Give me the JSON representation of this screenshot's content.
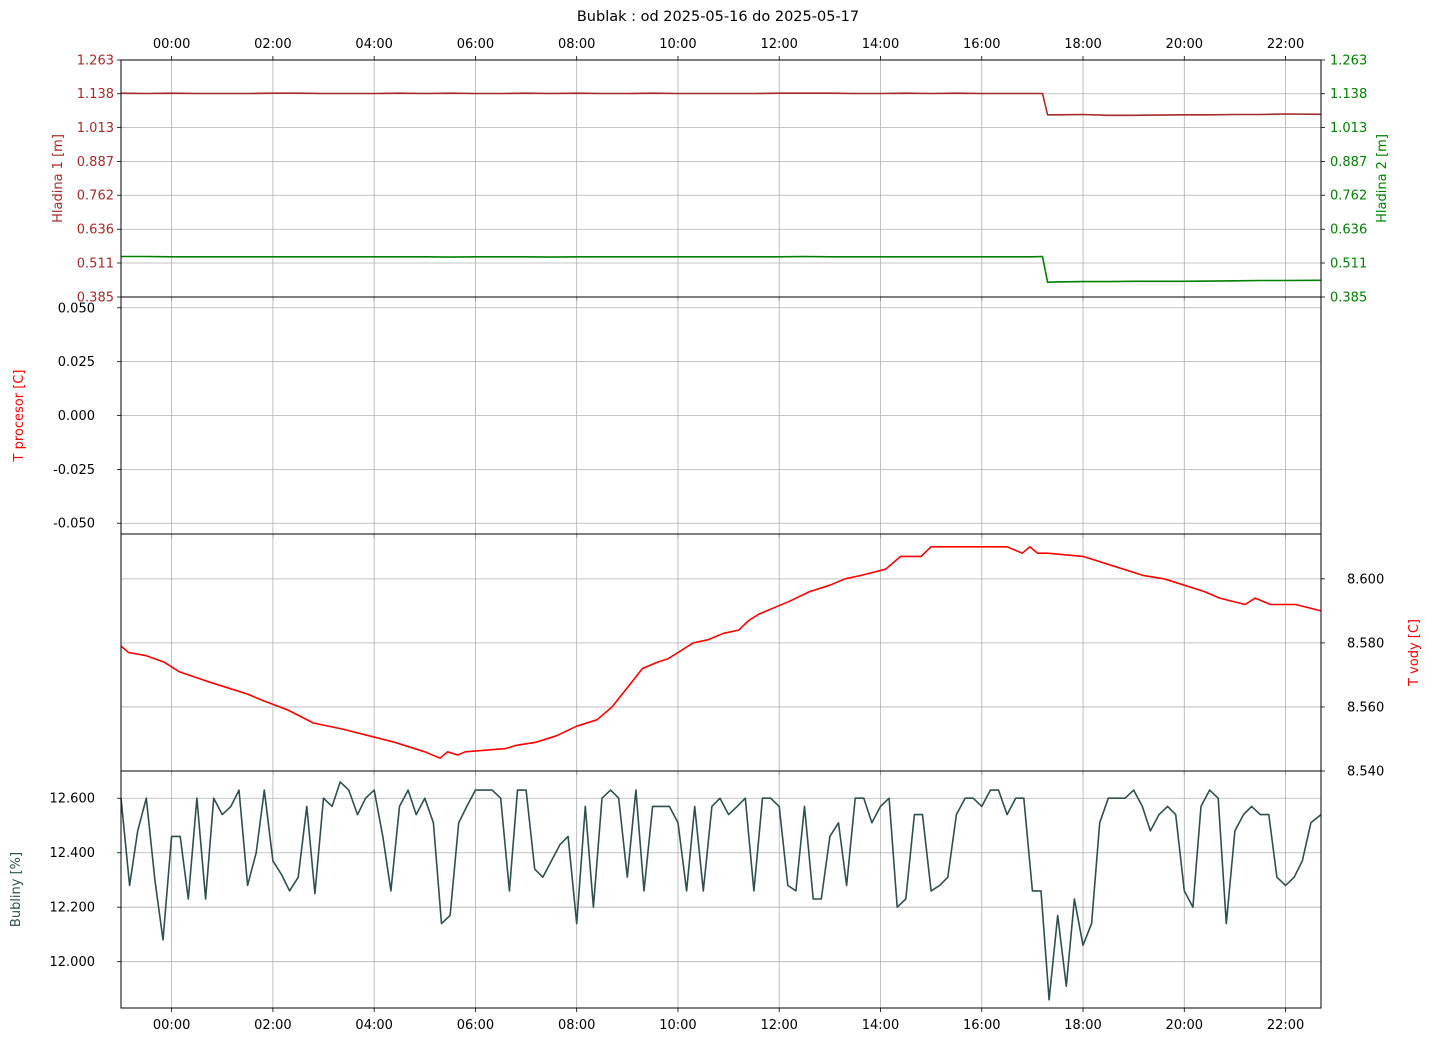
{
  "title": "Bublak : od 2025-05-16 do 2025-05-17",
  "colors": {
    "level1": "#a52a2a",
    "level2": "#008000",
    "proc": "#ff0000",
    "water": "#ff0000",
    "bubbles": "#2f4f4f",
    "grid": "#b0b0b0"
  },
  "time_ticks": [
    "00:00",
    "02:00",
    "04:00",
    "06:00",
    "08:00",
    "10:00",
    "12:00",
    "14:00",
    "16:00",
    "18:00",
    "20:00",
    "22:00"
  ],
  "chart_data": [
    {
      "type": "line",
      "panel": "levels",
      "x_unit": "hours from 2025-05-16 00:00",
      "xlim": [
        -1,
        22.7
      ],
      "y_left": {
        "label": "Hladina 1 [m]",
        "ticks": [
          "1.263",
          "1.138",
          "1.013",
          "0.887",
          "0.762",
          "0.636",
          "0.511",
          "0.385"
        ],
        "ylim": [
          0.385,
          1.263
        ]
      },
      "y_right": {
        "label": "Hladina 2 [m]",
        "ticks": [
          "1.263",
          "1.138",
          "1.013",
          "0.887",
          "0.762",
          "0.636",
          "0.511",
          "0.385"
        ],
        "ylim": [
          0.385,
          1.263
        ]
      },
      "grid": true,
      "series": [
        {
          "name": "Hladina 1 [m]",
          "axis": "left",
          "color": "#a52a2a",
          "x": [
            -1,
            -0.5,
            0,
            0.5,
            1,
            1.5,
            2,
            2.5,
            3,
            3.5,
            4,
            4.5,
            5,
            5.5,
            6,
            6.5,
            7,
            7.5,
            8,
            8.5,
            9,
            9.5,
            10,
            10.5,
            11,
            11.5,
            12,
            12.5,
            13,
            13.5,
            14,
            14.5,
            15,
            15.5,
            16,
            16.5,
            17,
            17.2,
            17.3,
            17.5,
            18,
            18.5,
            19,
            19.5,
            20,
            20.5,
            21,
            21.5,
            22,
            22.7
          ],
          "y": [
            1.14,
            1.139,
            1.14,
            1.139,
            1.139,
            1.139,
            1.14,
            1.14,
            1.139,
            1.139,
            1.139,
            1.14,
            1.139,
            1.14,
            1.139,
            1.139,
            1.14,
            1.139,
            1.14,
            1.139,
            1.139,
            1.14,
            1.139,
            1.139,
            1.139,
            1.139,
            1.14,
            1.14,
            1.14,
            1.139,
            1.139,
            1.14,
            1.139,
            1.14,
            1.139,
            1.139,
            1.139,
            1.139,
            1.06,
            1.06,
            1.061,
            1.058,
            1.058,
            1.059,
            1.06,
            1.06,
            1.061,
            1.061,
            1.063,
            1.062
          ]
        },
        {
          "name": "Hladina 2 [m]",
          "axis": "right",
          "color": "#008000",
          "x": [
            -1,
            -0.5,
            0,
            0.5,
            1,
            1.5,
            2,
            2.5,
            3,
            3.5,
            4,
            4.5,
            5,
            5.5,
            6,
            6.5,
            7,
            7.5,
            8,
            8.5,
            9,
            9.5,
            10,
            10.5,
            11,
            11.5,
            12,
            12.5,
            13,
            13.5,
            14,
            14.5,
            15,
            15.5,
            16,
            16.5,
            17,
            17.2,
            17.3,
            17.5,
            18,
            18.5,
            19,
            19.5,
            20,
            20.5,
            21,
            21.5,
            22,
            22.7
          ],
          "y": [
            0.535,
            0.535,
            0.534,
            0.534,
            0.534,
            0.534,
            0.534,
            0.534,
            0.534,
            0.534,
            0.534,
            0.534,
            0.534,
            0.533,
            0.534,
            0.534,
            0.534,
            0.533,
            0.534,
            0.534,
            0.534,
            0.534,
            0.534,
            0.534,
            0.534,
            0.534,
            0.534,
            0.535,
            0.534,
            0.534,
            0.534,
            0.534,
            0.534,
            0.534,
            0.534,
            0.534,
            0.534,
            0.535,
            0.44,
            0.441,
            0.442,
            0.442,
            0.443,
            0.443,
            0.443,
            0.444,
            0.445,
            0.446,
            0.446,
            0.447
          ]
        }
      ]
    },
    {
      "type": "line",
      "panel": "processor",
      "xlim": [
        -1,
        22.7
      ],
      "ylabel": "T procesor [C]",
      "yticks": [
        "0.050",
        "0.025",
        "0.000",
        "-0.025",
        "-0.050"
      ],
      "ylim": [
        -0.055,
        0.055
      ],
      "grid": true,
      "series": []
    },
    {
      "type": "line",
      "panel": "water",
      "xlim": [
        -1,
        22.7
      ],
      "ylabel_right": "T vody [C]",
      "yticks": [
        "8.600",
        "8.580",
        "8.560",
        "8.540"
      ],
      "ylim": [
        8.54,
        8.614
      ],
      "grid": true,
      "series": [
        {
          "name": "T vody [C]",
          "color": "#ff0000",
          "x": [
            -1,
            -0.85,
            -0.5,
            -0.15,
            0.15,
            0.7,
            1.1,
            1.5,
            1.8,
            2.3,
            2.8,
            3.4,
            3.9,
            4.4,
            5.0,
            5.3,
            5.45,
            5.65,
            5.8,
            6.6,
            6.8,
            7.2,
            7.6,
            8.0,
            8.4,
            8.7,
            9.0,
            9.3,
            9.6,
            9.8,
            10.0,
            10.3,
            10.6,
            10.9,
            11.2,
            11.4,
            11.6,
            11.9,
            12.2,
            12.6,
            13.0,
            13.3,
            13.6,
            14.1,
            14.4,
            14.8,
            15.0,
            15.5,
            16.0,
            16.5,
            16.8,
            16.95,
            17.1,
            17.3,
            18.0,
            18.8,
            19.2,
            19.6,
            20.0,
            20.4,
            20.7,
            21.2,
            21.4,
            21.7,
            22.2,
            22.7
          ],
          "y": [
            8.579,
            8.577,
            8.576,
            8.574,
            8.571,
            8.568,
            8.566,
            8.564,
            8.562,
            8.559,
            8.555,
            8.553,
            8.551,
            8.549,
            8.546,
            8.544,
            8.546,
            8.545,
            8.546,
            8.547,
            8.548,
            8.549,
            8.551,
            8.554,
            8.556,
            8.56,
            8.566,
            8.572,
            8.574,
            8.575,
            8.577,
            8.58,
            8.581,
            8.583,
            8.584,
            8.587,
            8.589,
            8.591,
            8.593,
            8.596,
            8.598,
            8.6,
            8.601,
            8.603,
            8.607,
            8.607,
            8.61,
            8.61,
            8.61,
            8.61,
            8.608,
            8.61,
            8.608,
            8.608,
            8.607,
            8.603,
            8.601,
            8.6,
            8.598,
            8.596,
            8.594,
            8.592,
            8.594,
            8.592,
            8.592,
            8.59
          ]
        }
      ]
    },
    {
      "type": "line",
      "panel": "bubbles",
      "xlim": [
        -1,
        22.7
      ],
      "ylabel": "Bubliny [%]",
      "yticks": [
        "12.600",
        "12.400",
        "12.200",
        "12.000"
      ],
      "ylim": [
        11.83,
        12.7
      ],
      "grid": true,
      "series": [
        {
          "name": "Bubliny [%]",
          "color": "#2f4f4f",
          "x": [
            -1,
            -0.83,
            -0.67,
            -0.5,
            -0.33,
            -0.17,
            0,
            0.17,
            0.33,
            0.5,
            0.67,
            0.83,
            1,
            1.17,
            1.33,
            1.5,
            1.67,
            1.83,
            2,
            2.17,
            2.33,
            2.5,
            2.67,
            2.83,
            3,
            3.17,
            3.33,
            3.5,
            3.67,
            3.83,
            4,
            4.17,
            4.33,
            4.5,
            4.67,
            4.83,
            5,
            5.17,
            5.33,
            5.5,
            5.67,
            5.83,
            6,
            6.17,
            6.33,
            6.5,
            6.67,
            6.83,
            7,
            7.17,
            7.33,
            7.5,
            7.67,
            7.83,
            8,
            8.17,
            8.33,
            8.5,
            8.67,
            8.83,
            9,
            9.17,
            9.33,
            9.5,
            9.67,
            9.83,
            10,
            10.17,
            10.33,
            10.5,
            10.67,
            10.83,
            11,
            11.17,
            11.33,
            11.5,
            11.67,
            11.83,
            12,
            12.17,
            12.33,
            12.5,
            12.67,
            12.83,
            13,
            13.17,
            13.33,
            13.5,
            13.67,
            13.83,
            14,
            14.17,
            14.33,
            14.5,
            14.67,
            14.83,
            15,
            15.17,
            15.33,
            15.5,
            15.67,
            15.83,
            16,
            16.17,
            16.33,
            16.5,
            16.67,
            16.83,
            17,
            17.17,
            17.33,
            17.5,
            17.67,
            17.83,
            18,
            18.17,
            18.33,
            18.5,
            18.67,
            18.83,
            19,
            19.17,
            19.33,
            19.5,
            19.67,
            19.83,
            20,
            20.17,
            20.33,
            20.5,
            20.67,
            20.83,
            21,
            21.17,
            21.33,
            21.5,
            21.67,
            21.83,
            22,
            22.17,
            22.33,
            22.5,
            22.7
          ],
          "y": [
            12.6,
            12.28,
            12.48,
            12.6,
            12.3,
            12.08,
            12.46,
            12.46,
            12.23,
            12.6,
            12.23,
            12.6,
            12.54,
            12.57,
            12.63,
            12.28,
            12.4,
            12.63,
            12.37,
            12.32,
            12.26,
            12.31,
            12.57,
            12.25,
            12.6,
            12.57,
            12.66,
            12.63,
            12.54,
            12.6,
            12.63,
            12.46,
            12.26,
            12.57,
            12.63,
            12.54,
            12.6,
            12.51,
            12.14,
            12.17,
            12.51,
            12.57,
            12.63,
            12.63,
            12.63,
            12.6,
            12.26,
            12.63,
            12.63,
            12.34,
            12.31,
            12.37,
            12.43,
            12.46,
            12.14,
            12.57,
            12.2,
            12.6,
            12.63,
            12.6,
            12.31,
            12.63,
            12.26,
            12.57,
            12.57,
            12.57,
            12.51,
            12.26,
            12.57,
            12.26,
            12.57,
            12.6,
            12.54,
            12.57,
            12.6,
            12.26,
            12.6,
            12.6,
            12.57,
            12.28,
            12.26,
            12.57,
            12.23,
            12.23,
            12.46,
            12.51,
            12.28,
            12.6,
            12.6,
            12.51,
            12.57,
            12.6,
            12.2,
            12.23,
            12.54,
            12.54,
            12.26,
            12.28,
            12.31,
            12.54,
            12.6,
            12.6,
            12.57,
            12.63,
            12.63,
            12.54,
            12.6,
            12.6,
            12.26,
            12.26,
            11.86,
            12.17,
            11.91,
            12.23,
            12.06,
            12.14,
            12.51,
            12.6,
            12.6,
            12.6,
            12.63,
            12.57,
            12.48,
            12.54,
            12.57,
            12.54,
            12.26,
            12.2,
            12.57,
            12.63,
            12.6,
            12.14,
            12.48,
            12.54,
            12.57,
            12.54,
            12.54,
            12.31,
            12.28,
            12.31,
            12.37,
            12.51,
            12.54
          ]
        }
      ]
    }
  ]
}
